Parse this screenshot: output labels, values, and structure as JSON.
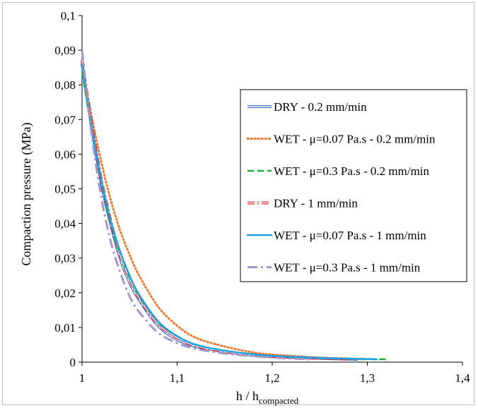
{
  "chart_data": {
    "type": "line",
    "xlabel_main": "h / h",
    "xlabel_sub": "compacted",
    "ylabel": "Compaction pressure (MPa)",
    "xlim": [
      1,
      1.4
    ],
    "ylim": [
      0,
      0.1
    ],
    "x_ticks": [
      1,
      1.1,
      1.2,
      1.3,
      1.4
    ],
    "x_tick_labels": [
      "1",
      "1,1",
      "1,2",
      "1,3",
      "1,4"
    ],
    "y_ticks": [
      0,
      0.01,
      0.02,
      0.03,
      0.04,
      0.05,
      0.06,
      0.07,
      0.08,
      0.09,
      0.1
    ],
    "y_tick_labels": [
      "0",
      "0,01",
      "0,02",
      "0,03",
      "0,04",
      "0,05",
      "0,06",
      "0,07",
      "0,08",
      "0,09",
      "0,1"
    ],
    "grid": false,
    "legend_position": "right",
    "series": [
      {
        "name": "DRY - 0.2 mm/min",
        "color": "#4472c4",
        "style": "double",
        "x": [
          1.0,
          1.01,
          1.02,
          1.03,
          1.04,
          1.05,
          1.06,
          1.08,
          1.1,
          1.12,
          1.15,
          1.18,
          1.2,
          1.25,
          1.29
        ],
        "y": [
          0.086,
          0.068,
          0.052,
          0.04,
          0.03,
          0.023,
          0.018,
          0.0105,
          0.0065,
          0.0045,
          0.003,
          0.002,
          0.0016,
          0.0011,
          0.0008
        ]
      },
      {
        "name": "WET - μ=0.07 Pa.s - 0.2 mm/min",
        "color": "#ed7d31",
        "style": "dotted",
        "x": [
          1.0,
          1.01,
          1.02,
          1.03,
          1.04,
          1.05,
          1.06,
          1.08,
          1.1,
          1.12,
          1.15,
          1.18,
          1.2,
          1.25,
          1.3
        ],
        "y": [
          0.085,
          0.071,
          0.058,
          0.047,
          0.038,
          0.031,
          0.025,
          0.016,
          0.0105,
          0.007,
          0.0045,
          0.0028,
          0.0022,
          0.0013,
          0.0008
        ]
      },
      {
        "name": "WET - μ=0.3 Pa.s - 0.2 mm/min",
        "color": "#1faa3c",
        "style": "dashed",
        "x": [
          1.0,
          1.01,
          1.02,
          1.03,
          1.04,
          1.05,
          1.06,
          1.08,
          1.1,
          1.12,
          1.15,
          1.18,
          1.2,
          1.25,
          1.3,
          1.32
        ],
        "y": [
          0.084,
          0.067,
          0.052,
          0.04,
          0.031,
          0.024,
          0.019,
          0.0115,
          0.0075,
          0.005,
          0.0033,
          0.0023,
          0.0018,
          0.0012,
          0.0009,
          0.0008
        ]
      },
      {
        "name": "DRY - 1 mm/min",
        "color": "#e02020",
        "style": "double-dashdot",
        "x": [
          1.0,
          1.01,
          1.02,
          1.03,
          1.04,
          1.05,
          1.06,
          1.08,
          1.1,
          1.12,
          1.15,
          1.18,
          1.2,
          1.25,
          1.28
        ],
        "y": [
          0.087,
          0.069,
          0.053,
          0.041,
          0.031,
          0.024,
          0.0185,
          0.011,
          0.007,
          0.0047,
          0.0031,
          0.0021,
          0.0017,
          0.0011,
          0.0009
        ]
      },
      {
        "name": "WET - μ=0.07 Pa.s - 1 mm/min",
        "color": "#1aa3e8",
        "style": "solid",
        "x": [
          1.0,
          1.01,
          1.02,
          1.03,
          1.04,
          1.05,
          1.06,
          1.08,
          1.1,
          1.12,
          1.15,
          1.18,
          1.2,
          1.25,
          1.3,
          1.31
        ],
        "y": [
          0.086,
          0.068,
          0.053,
          0.041,
          0.032,
          0.025,
          0.0195,
          0.0118,
          0.0075,
          0.005,
          0.0033,
          0.0023,
          0.0018,
          0.0012,
          0.0009,
          0.0008
        ]
      },
      {
        "name": "WET - μ=0.3 Pa.s - 1 mm/min",
        "color": "#a994c8",
        "style": "longdash-dot",
        "x": [
          1.0,
          1.01,
          1.02,
          1.03,
          1.04,
          1.05,
          1.06,
          1.08,
          1.1,
          1.12,
          1.15,
          1.18,
          1.2,
          1.24
        ],
        "y": [
          0.09,
          0.066,
          0.048,
          0.035,
          0.026,
          0.019,
          0.0145,
          0.0085,
          0.0055,
          0.0038,
          0.0025,
          0.0017,
          0.0013,
          0.0008
        ]
      }
    ]
  }
}
